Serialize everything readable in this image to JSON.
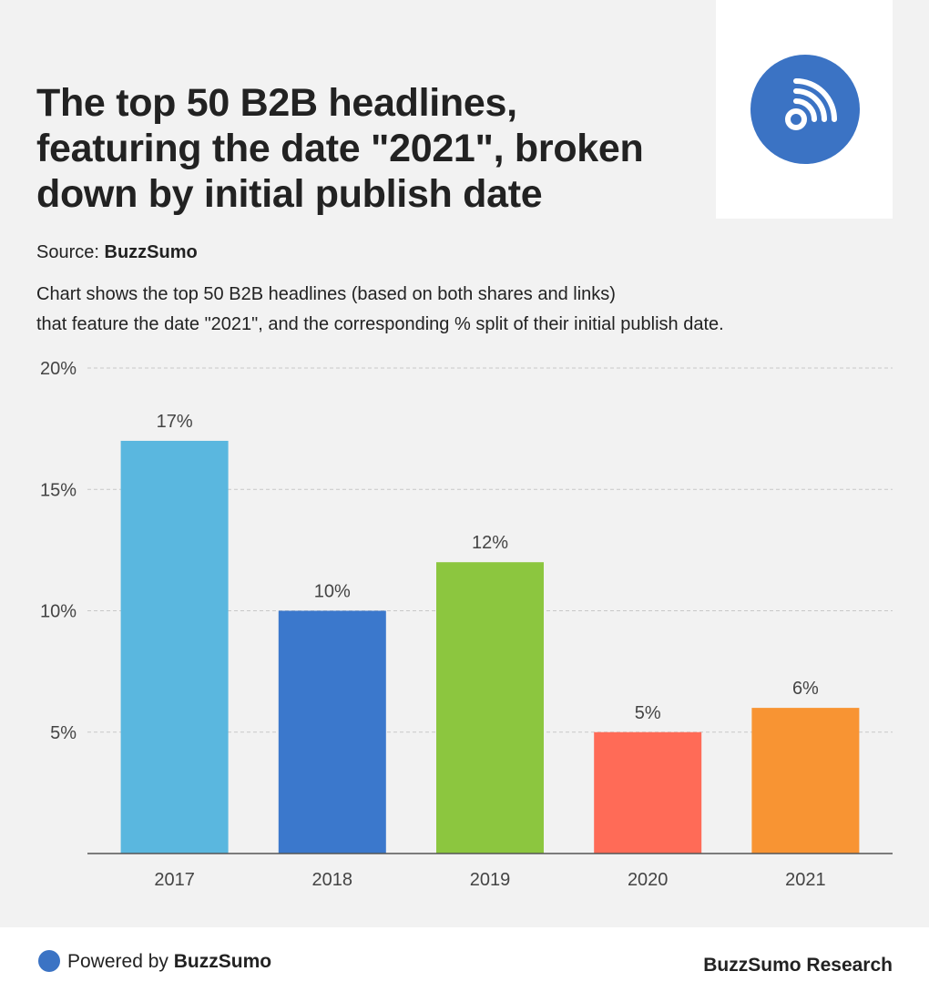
{
  "header": {
    "title": "The top 50 B2B headlines, featuring the date \"2021\", broken down by initial publish date",
    "logo_icon": "rss-feed-icon",
    "logo_color": "#3b73c4"
  },
  "source": {
    "label": "Source:",
    "name": "BuzzSumo"
  },
  "description": {
    "line1": "Chart shows the top 50 B2B headlines (based on both shares and links)",
    "line2": "that feature the date \"2021\", and the corresponding % split of their initial publish date."
  },
  "chart_data": {
    "type": "bar",
    "categories": [
      "2017",
      "2018",
      "2019",
      "2020",
      "2021"
    ],
    "values": [
      17,
      10,
      12,
      5,
      6
    ],
    "value_labels": [
      "17%",
      "10%",
      "12%",
      "5%",
      "6%"
    ],
    "colors": [
      "#5ab7df",
      "#3b78cc",
      "#8cc63f",
      "#ff6b57",
      "#f89433"
    ],
    "ylim": [
      0,
      20
    ],
    "yticks": [
      5,
      10,
      15,
      20
    ],
    "ytick_labels": [
      "5%",
      "10%",
      "15%",
      "20%"
    ],
    "grid": true,
    "title": "",
    "xlabel": "",
    "ylabel": ""
  },
  "footer": {
    "powered_prefix": "Powered by",
    "powered_brand": "BuzzSumo",
    "research": "BuzzSumo Research",
    "dot_color": "#3b73c4"
  }
}
